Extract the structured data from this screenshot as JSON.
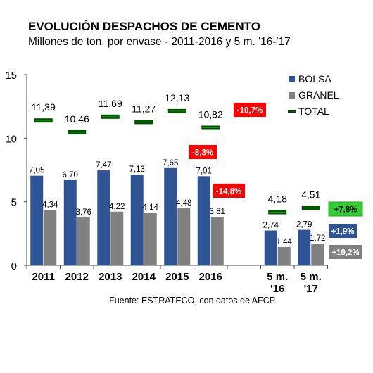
{
  "title": "EVOLUCIÓN DESPACHOS DE CEMENTO",
  "subtitle": "Millones de ton. por envase - 2011-2016 y 5 m. '16-'17",
  "source": "Fuente: ESTRATECO, con datos de AFCP.",
  "colors": {
    "bolsa": "#2f5496",
    "granel": "#808080",
    "total": "#005000",
    "red_badge": "#ff0000",
    "green_badge": "#33cc33",
    "blue_badge": "#2f5496",
    "gray_badge": "#808080"
  },
  "chart_data": {
    "type": "bar",
    "categories": [
      "2011",
      "2012",
      "2013",
      "2014",
      "2015",
      "2016",
      "",
      "5 m. '16",
      "5 m. '17"
    ],
    "category_lines": [
      [
        "2011"
      ],
      [
        "2012"
      ],
      [
        "2013"
      ],
      [
        "2014"
      ],
      [
        "2015"
      ],
      [
        "2016"
      ],
      [
        ""
      ],
      [
        "5 m.",
        "'16"
      ],
      [
        "5 m.",
        "'17"
      ]
    ],
    "series": [
      {
        "name": "BOLSA",
        "values": [
          7.05,
          6.7,
          7.47,
          7.13,
          7.65,
          7.01,
          null,
          2.74,
          2.79
        ],
        "labels": [
          "7,05",
          "6,70",
          "7,47",
          "7,13",
          "7,65",
          "7,01",
          "",
          "2,74",
          "2,79"
        ]
      },
      {
        "name": "GRANEL",
        "values": [
          4.34,
          3.76,
          4.22,
          4.14,
          4.48,
          3.81,
          null,
          1.44,
          1.72
        ],
        "labels": [
          "4,34",
          "3,76",
          "4,22",
          "4,14",
          "4,48",
          "3,81",
          "",
          "1,44",
          "1,72"
        ]
      },
      {
        "name": "TOTAL",
        "values": [
          11.39,
          10.46,
          11.69,
          11.27,
          12.13,
          10.82,
          null,
          4.18,
          4.51
        ],
        "labels": [
          "11,39",
          "10,46",
          "11,69",
          "11,27",
          "12,13",
          "10,82",
          "",
          "4,18",
          "4,51"
        ]
      }
    ],
    "ylim": [
      0,
      15
    ],
    "yticks": [
      0,
      5,
      10,
      15
    ],
    "legend_position": "right",
    "annotations": [
      {
        "text": "-10,7%",
        "color": "red"
      },
      {
        "text": "-8,3%",
        "color": "red"
      },
      {
        "text": "-14,8%",
        "color": "red"
      },
      {
        "text": "+7,8%",
        "color": "green"
      },
      {
        "text": "+1,9%",
        "color": "blue"
      },
      {
        "text": "+19,2%",
        "color": "gray"
      }
    ]
  }
}
